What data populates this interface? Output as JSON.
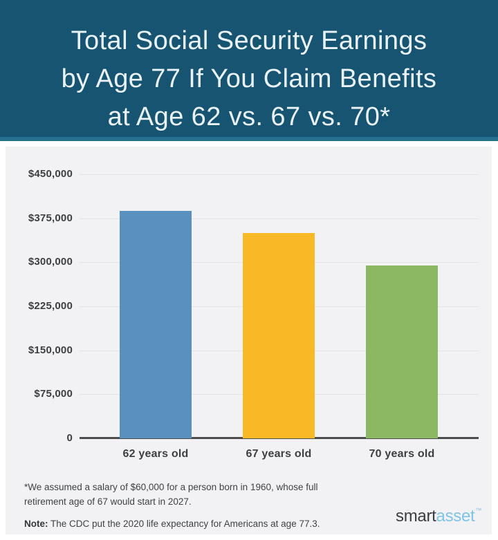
{
  "header": {
    "title_lines": [
      "Total Social Security Earnings",
      "by Age 77 If You Claim Benefits",
      "at Age 62 vs. 67 vs. 70*"
    ],
    "background_color": "#175471",
    "accent_color": "#27708d",
    "text_color": "#e9f3f8"
  },
  "chart_data": {
    "type": "bar",
    "title": "Total Social Security Earnings by Age 77 If You Claim Benefits at Age 62 vs. 67 vs. 70*",
    "categories": [
      "62 years old",
      "67 years old",
      "70 years old"
    ],
    "values": [
      388000,
      350000,
      295000
    ],
    "bar_colors": [
      "#5890bf",
      "#f9b826",
      "#8cb763"
    ],
    "xlabel": "",
    "ylabel": "",
    "ylim": [
      0,
      450000
    ],
    "y_ticks": [
      {
        "value": 450000,
        "label": "$450,000"
      },
      {
        "value": 375000,
        "label": "$375,000"
      },
      {
        "value": 300000,
        "label": "$300,000"
      },
      {
        "value": 225000,
        "label": "$225,000"
      },
      {
        "value": 150000,
        "label": "$150,000"
      },
      {
        "value": 75000,
        "label": "$75,000"
      },
      {
        "value": 0,
        "label": "0"
      }
    ],
    "grid": true,
    "legend": false,
    "panel_background": "#f2f2f4",
    "gridline_color": "#e3e3e7",
    "axis_color": "#4c4c4c",
    "label_color": "#3d4043"
  },
  "footnotes": {
    "assumption": "*We assumed a salary of $60,000 for a person born in 1960, whose full retirement age of 67 would start in 2027.",
    "note_label": "Note:",
    "note_text": " The CDC put the 2020 life expectancy for Americans at age 77.3."
  },
  "logo": {
    "smart": "smart",
    "asset": "asset",
    "trademark": "™"
  }
}
